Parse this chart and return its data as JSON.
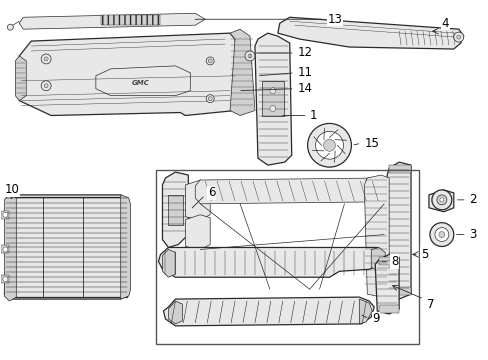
{
  "bg_color": "#ffffff",
  "line_color": "#2a2a2a",
  "label_color": "#000000",
  "fig_width": 4.89,
  "fig_height": 3.6,
  "dpi": 100,
  "fontsize": 8.5,
  "lw_main": 0.9,
  "lw_detail": 0.5,
  "lw_thin": 0.3
}
